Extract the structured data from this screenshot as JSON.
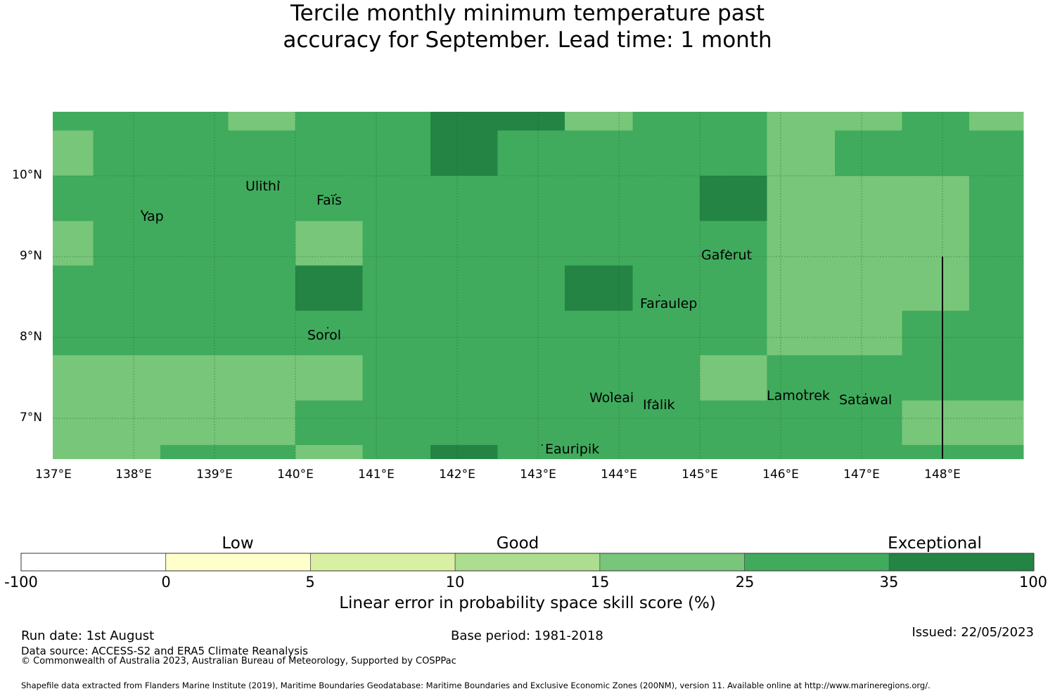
{
  "title": {
    "line1": "Tercile monthly minimum temperature past",
    "line2": "accuracy for September. Lead time: 1 month"
  },
  "colors": {
    "very_dark_green": "#238443",
    "dark_green": "#41ab5d",
    "mid_green": "#78c679",
    "light_green": "#addd8e",
    "pale_green": "#d9f0a3",
    "pale_yellow": "#ffffcc",
    "white": "#ffffff"
  },
  "map": {
    "lon_min": 137.0,
    "lon_max": 149.0,
    "lat_min": 6.5,
    "lat_max": 10.8,
    "lon_ticks": [
      "137°E",
      "138°E",
      "139°E",
      "140°E",
      "141°E",
      "142°E",
      "143°E",
      "144°E",
      "145°E",
      "146°E",
      "147°E",
      "148°E"
    ],
    "lat_ticks": [
      "10°N",
      "9°N",
      "8°N",
      "7°N"
    ],
    "cells": [
      {
        "lon": [
          137.0,
          139.17
        ],
        "lat": [
          10.56,
          10.8
        ],
        "c": "dark_green"
      },
      {
        "lon": [
          139.17,
          140.0
        ],
        "lat": [
          10.56,
          10.8
        ],
        "c": "mid_green"
      },
      {
        "lon": [
          140.0,
          141.67
        ],
        "lat": [
          10.56,
          10.8
        ],
        "c": "dark_green"
      },
      {
        "lon": [
          141.67,
          143.33
        ],
        "lat": [
          10.56,
          10.8
        ],
        "c": "very_dark_green"
      },
      {
        "lon": [
          143.33,
          144.17
        ],
        "lat": [
          10.56,
          10.8
        ],
        "c": "mid_green"
      },
      {
        "lon": [
          144.17,
          145.83
        ],
        "lat": [
          10.56,
          10.8
        ],
        "c": "dark_green"
      },
      {
        "lon": [
          145.83,
          147.5
        ],
        "lat": [
          10.56,
          10.8
        ],
        "c": "mid_green"
      },
      {
        "lon": [
          147.5,
          148.33
        ],
        "lat": [
          10.56,
          10.8
        ],
        "c": "dark_green"
      },
      {
        "lon": [
          148.33,
          149.0
        ],
        "lat": [
          10.56,
          10.8
        ],
        "c": "mid_green"
      },
      {
        "lon": [
          137.0,
          137.5
        ],
        "lat": [
          10.0,
          10.56
        ],
        "c": "mid_green"
      },
      {
        "lon": [
          137.5,
          141.67
        ],
        "lat": [
          10.0,
          10.56
        ],
        "c": "dark_green"
      },
      {
        "lon": [
          141.67,
          142.5
        ],
        "lat": [
          10.0,
          10.56
        ],
        "c": "very_dark_green"
      },
      {
        "lon": [
          142.5,
          145.83
        ],
        "lat": [
          10.0,
          10.56
        ],
        "c": "dark_green"
      },
      {
        "lon": [
          145.83,
          146.67
        ],
        "lat": [
          10.0,
          10.56
        ],
        "c": "mid_green"
      },
      {
        "lon": [
          146.67,
          149.0
        ],
        "lat": [
          10.0,
          10.56
        ],
        "c": "dark_green"
      },
      {
        "lon": [
          137.0,
          145.0
        ],
        "lat": [
          9.44,
          10.0
        ],
        "c": "dark_green"
      },
      {
        "lon": [
          145.0,
          145.83
        ],
        "lat": [
          9.44,
          10.0
        ],
        "c": "very_dark_green"
      },
      {
        "lon": [
          145.83,
          148.33
        ],
        "lat": [
          9.44,
          10.0
        ],
        "c": "mid_green"
      },
      {
        "lon": [
          148.33,
          149.0
        ],
        "lat": [
          9.44,
          10.0
        ],
        "c": "dark_green"
      },
      {
        "lon": [
          137.0,
          137.5
        ],
        "lat": [
          8.89,
          9.44
        ],
        "c": "mid_green"
      },
      {
        "lon": [
          137.5,
          140.0
        ],
        "lat": [
          8.89,
          9.44
        ],
        "c": "dark_green"
      },
      {
        "lon": [
          140.0,
          140.83
        ],
        "lat": [
          8.89,
          9.44
        ],
        "c": "mid_green"
      },
      {
        "lon": [
          140.83,
          145.83
        ],
        "lat": [
          8.89,
          9.44
        ],
        "c": "dark_green"
      },
      {
        "lon": [
          145.83,
          148.33
        ],
        "lat": [
          8.89,
          9.44
        ],
        "c": "mid_green"
      },
      {
        "lon": [
          148.33,
          149.0
        ],
        "lat": [
          8.89,
          9.44
        ],
        "c": "dark_green"
      },
      {
        "lon": [
          137.0,
          140.0
        ],
        "lat": [
          8.33,
          8.89
        ],
        "c": "dark_green"
      },
      {
        "lon": [
          140.0,
          140.83
        ],
        "lat": [
          8.33,
          8.89
        ],
        "c": "very_dark_green"
      },
      {
        "lon": [
          140.83,
          143.33
        ],
        "lat": [
          8.33,
          8.89
        ],
        "c": "dark_green"
      },
      {
        "lon": [
          143.33,
          144.17
        ],
        "lat": [
          8.33,
          8.89
        ],
        "c": "very_dark_green"
      },
      {
        "lon": [
          144.17,
          145.83
        ],
        "lat": [
          8.33,
          8.89
        ],
        "c": "dark_green"
      },
      {
        "lon": [
          145.83,
          148.33
        ],
        "lat": [
          8.33,
          8.89
        ],
        "c": "mid_green"
      },
      {
        "lon": [
          148.33,
          149.0
        ],
        "lat": [
          8.33,
          8.89
        ],
        "c": "dark_green"
      },
      {
        "lon": [
          137.0,
          145.83
        ],
        "lat": [
          7.78,
          8.33
        ],
        "c": "dark_green"
      },
      {
        "lon": [
          145.83,
          147.5
        ],
        "lat": [
          7.78,
          8.33
        ],
        "c": "mid_green"
      },
      {
        "lon": [
          147.5,
          149.0
        ],
        "lat": [
          7.78,
          8.33
        ],
        "c": "dark_green"
      },
      {
        "lon": [
          137.0,
          140.83
        ],
        "lat": [
          7.22,
          7.78
        ],
        "c": "mid_green"
      },
      {
        "lon": [
          140.83,
          145.0
        ],
        "lat": [
          7.22,
          7.78
        ],
        "c": "dark_green"
      },
      {
        "lon": [
          145.0,
          145.83
        ],
        "lat": [
          7.22,
          7.78
        ],
        "c": "mid_green"
      },
      {
        "lon": [
          145.83,
          149.0
        ],
        "lat": [
          7.22,
          7.78
        ],
        "c": "dark_green"
      },
      {
        "lon": [
          137.0,
          140.0
        ],
        "lat": [
          6.67,
          7.22
        ],
        "c": "mid_green"
      },
      {
        "lon": [
          140.0,
          147.5
        ],
        "lat": [
          6.67,
          7.22
        ],
        "c": "dark_green"
      },
      {
        "lon": [
          147.5,
          149.0
        ],
        "lat": [
          6.67,
          7.22
        ],
        "c": "mid_green"
      },
      {
        "lon": [
          137.0,
          138.33
        ],
        "lat": [
          6.5,
          6.67
        ],
        "c": "mid_green"
      },
      {
        "lon": [
          138.33,
          140.0
        ],
        "lat": [
          6.5,
          6.67
        ],
        "c": "dark_green"
      },
      {
        "lon": [
          140.0,
          140.83
        ],
        "lat": [
          6.5,
          6.67
        ],
        "c": "mid_green"
      },
      {
        "lon": [
          140.83,
          141.67
        ],
        "lat": [
          6.5,
          6.67
        ],
        "c": "dark_green"
      },
      {
        "lon": [
          141.67,
          142.5
        ],
        "lat": [
          6.5,
          6.67
        ],
        "c": "very_dark_green"
      },
      {
        "lon": [
          142.5,
          149.0
        ],
        "lat": [
          6.5,
          6.67
        ],
        "c": "dark_green"
      }
    ],
    "islands": [
      {
        "name": "Ulithi",
        "lon": 139.8,
        "lat": 9.85
      },
      {
        "name": "Faïs",
        "lon": 140.5,
        "lat": 9.7
      },
      {
        "name": "Yap",
        "lon": 138.1,
        "lat": 9.5
      },
      {
        "name": "Gaferut",
        "lon": 145.35,
        "lat": 9.0
      },
      {
        "name": "Faraulep",
        "lon": 144.5,
        "lat": 8.45
      },
      {
        "name": "Sorol",
        "lon": 140.4,
        "lat": 8.05
      },
      {
        "name": "Woleai",
        "lon": 143.9,
        "lat": 7.25
      },
      {
        "name": "Ifalik",
        "lon": 144.45,
        "lat": 7.15
      },
      {
        "name": "Lamotrek",
        "lon": 146.3,
        "lat": 7.28
      },
      {
        "name": "Satawal",
        "lon": 147.05,
        "lat": 7.23
      },
      {
        "name": "Eauripik",
        "lon": 143.05,
        "lat": 6.6
      }
    ],
    "boundary_lon": 148.0,
    "boundary_lat": [
      6.5,
      9.0
    ]
  },
  "colorbar": {
    "categories": [
      "Low",
      "Good",
      "Exceptional"
    ],
    "ticks": [
      "-100",
      "0",
      "5",
      "10",
      "15",
      "25",
      "35",
      "100"
    ],
    "segment_colors": [
      "white",
      "pale_yellow",
      "pale_green",
      "light_green",
      "mid_green",
      "dark_green",
      "very_dark_green"
    ],
    "label": "Linear error in probability space skill score (%)"
  },
  "footer": {
    "run_date": "Run date: 1st August",
    "base_period": "Base period: 1981-2018",
    "issued": "Issued: 22/05/2023",
    "data_source": "Data source: ACCESS-S2 and ERA5 Climate Reanalysis",
    "copyright": "© Commonwealth of Australia 2023, Australian Bureau of Meteorology, Supported by COSPPac",
    "shapefile": "Shapefile data extracted from Flanders Marine Institute (2019), Maritime Boundaries Geodatabase: Maritime Boundaries and Exclusive Economic Zones (200NM), version 11. Available online at http://www.marineregions.org/."
  }
}
